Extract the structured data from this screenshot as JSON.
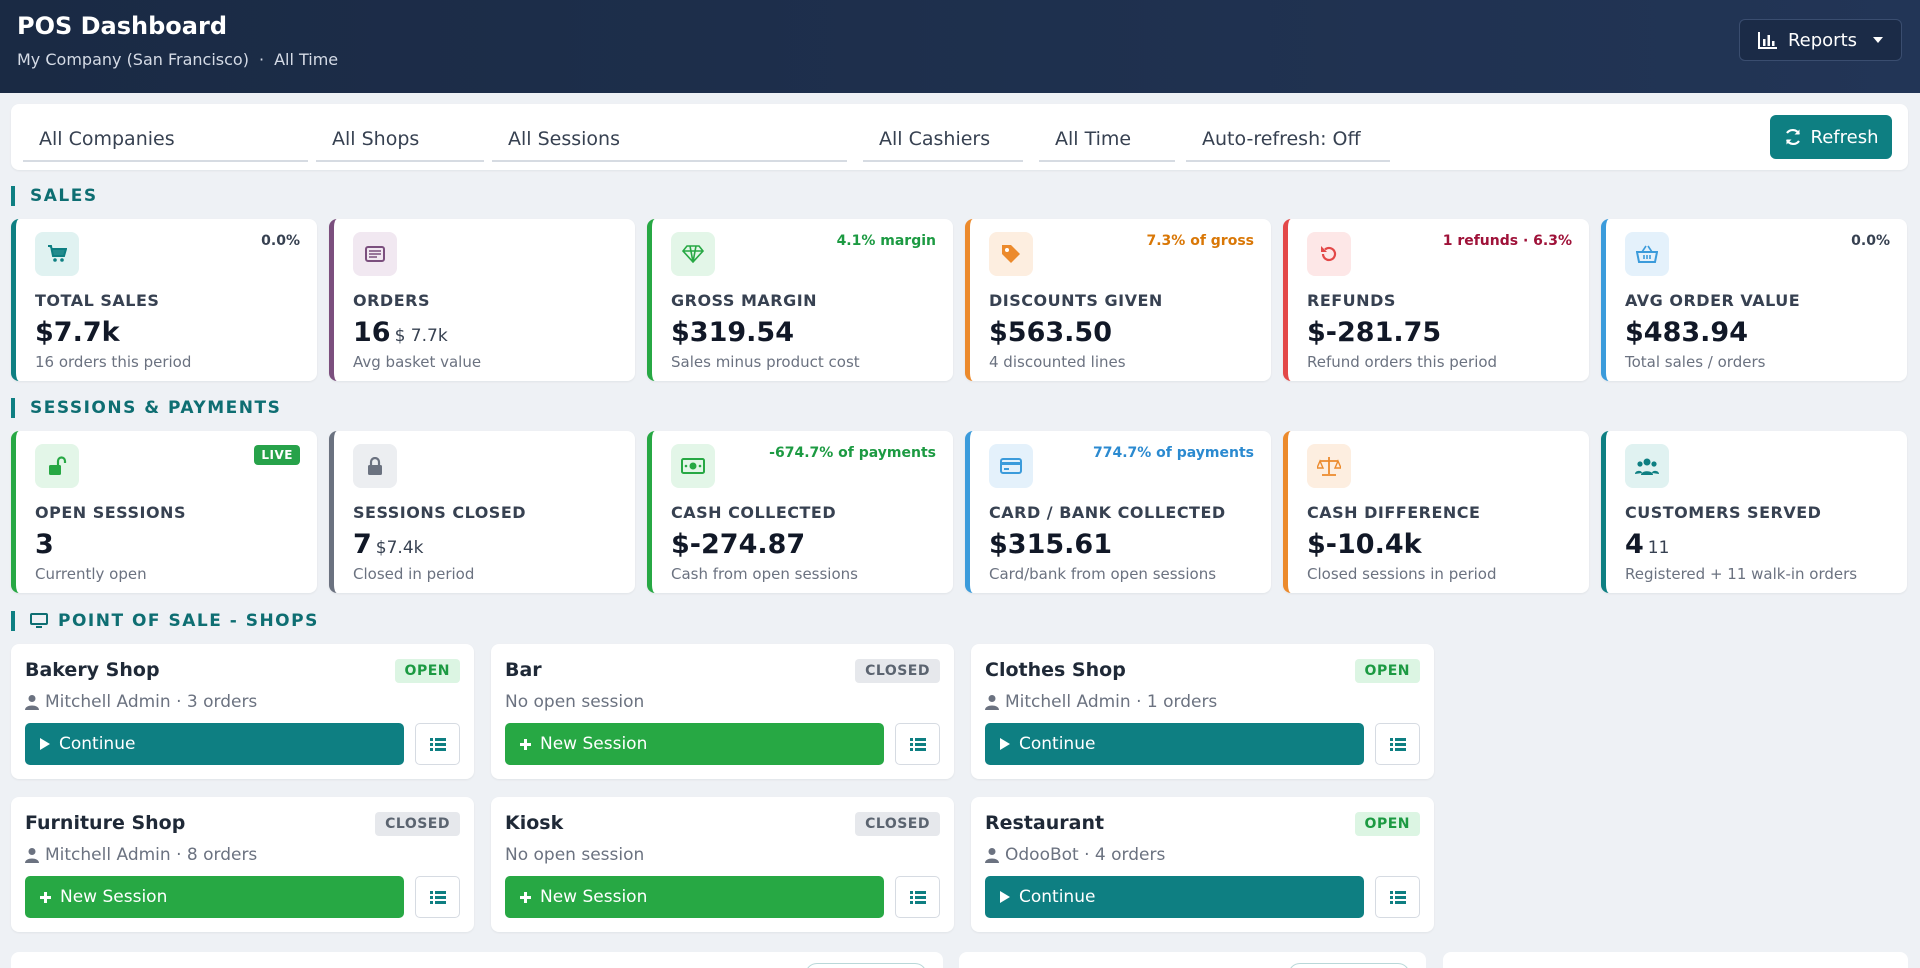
{
  "header": {
    "title": "POS Dashboard",
    "company": "My Company (San Francisco)",
    "separator": "·",
    "period": "All Time",
    "reports_label": "Reports"
  },
  "filters": {
    "companies": "All Companies",
    "shops": "All Shops",
    "sessions": "All Sessions",
    "cashiers": "All Cashiers",
    "time": "All Time",
    "autorefresh": "Auto-refresh: Off",
    "refresh_label": "Refresh"
  },
  "sales": {
    "title": "SALES",
    "cards": [
      {
        "label": "TOTAL SALES",
        "value": "$7.7k",
        "sub": "",
        "desc": "16 orders this period",
        "badge": "0.0%",
        "icon": "cart-icon",
        "accent": "#0e7f82",
        "badge_color": "#374151",
        "icon_bg": "#e0f2f1"
      },
      {
        "label": "ORDERS",
        "value": "16",
        "sub": "$ 7.7k",
        "desc": "Avg basket value",
        "badge": "",
        "icon": "receipt-icon",
        "accent": "#7b4f7e",
        "badge_color": "#374151",
        "icon_bg": "#f1e8f1"
      },
      {
        "label": "GROSS MARGIN",
        "value": "$319.54",
        "sub": "",
        "desc": "Sales minus product cost",
        "badge": "4.1% margin",
        "icon": "diamond-icon",
        "accent": "#27a844",
        "badge_color": "#1c9a42",
        "icon_bg": "#e3f6e8"
      },
      {
        "label": "DISCOUNTS GIVEN",
        "value": "$563.50",
        "sub": "",
        "desc": "4 discounted lines",
        "badge": "7.3% of gross",
        "icon": "tag-icon",
        "accent": "#ec8a2c",
        "badge_color": "#d97706",
        "icon_bg": "#fdeee0"
      },
      {
        "label": "REFUNDS",
        "value": "$-281.75",
        "sub": "",
        "desc": "Refund orders this period",
        "badge": "1 refunds · 6.3%",
        "icon": "undo-icon",
        "accent": "#e34848",
        "badge_color": "#9f1239",
        "icon_bg": "#fde7e7"
      },
      {
        "label": "AVG ORDER VALUE",
        "value": "$483.94",
        "sub": "",
        "desc": "Total sales / orders",
        "badge": "0.0%",
        "icon": "basket-icon",
        "accent": "#3b9bdb",
        "badge_color": "#374151",
        "icon_bg": "#e4f1fb"
      }
    ]
  },
  "sessions": {
    "title": "SESSIONS & PAYMENTS",
    "cards": [
      {
        "label": "OPEN SESSIONS",
        "value": "3",
        "sub": "",
        "desc": "Currently open",
        "badge": "",
        "live": "LIVE",
        "icon": "unlock-icon",
        "accent": "#27a844",
        "badge_color": "#374151",
        "icon_bg": "#e3f6e8"
      },
      {
        "label": "SESSIONS CLOSED",
        "value": "7",
        "sub": "$7.4k",
        "desc": "Closed in period",
        "badge": "",
        "icon": "lock-icon",
        "accent": "#6b7280",
        "badge_color": "#374151",
        "icon_bg": "#eceef1"
      },
      {
        "label": "CASH COLLECTED",
        "value": "$-274.87",
        "sub": "",
        "desc": "Cash from open sessions",
        "badge": "-674.7% of payments",
        "icon": "cash-icon",
        "accent": "#27a844",
        "badge_color": "#1c9a42",
        "icon_bg": "#e3f6e8"
      },
      {
        "label": "CARD / BANK COLLECTED",
        "value": "$315.61",
        "sub": "",
        "desc": "Card/bank from open sessions",
        "badge": "774.7% of payments",
        "icon": "credit-card-icon",
        "accent": "#3b9bdb",
        "badge_color": "#2b8ad0",
        "icon_bg": "#e4f1fb"
      },
      {
        "label": "CASH DIFFERENCE",
        "value": "$-10.4k",
        "sub": "",
        "desc": "Closed sessions in period",
        "badge": "",
        "icon": "scale-icon",
        "accent": "#ec8a2c",
        "badge_color": "#374151",
        "icon_bg": "#fdeee0"
      },
      {
        "label": "CUSTOMERS SERVED",
        "value": "4",
        "sub": "11",
        "desc": "Registered + 11 walk-in orders",
        "badge": "",
        "icon": "users-icon",
        "accent": "#0e7f82",
        "badge_color": "#374151",
        "icon_bg": "#e0f2f1"
      }
    ]
  },
  "shops": {
    "title": "POINT OF SALE - SHOPS",
    "items": [
      {
        "name": "Bakery Shop",
        "status": "OPEN",
        "info": "Mitchell Admin · 3 orders",
        "has_user": true,
        "action": "Continue"
      },
      {
        "name": "Bar",
        "status": "CLOSED",
        "info": "No open session",
        "has_user": false,
        "action": "New Session"
      },
      {
        "name": "Clothes Shop",
        "status": "OPEN",
        "info": "Mitchell Admin · 1 orders",
        "has_user": true,
        "action": "Continue"
      },
      {
        "name": "Furniture Shop",
        "status": "CLOSED",
        "info": "Mitchell Admin · 8 orders",
        "has_user": true,
        "action": "New Session"
      },
      {
        "name": "Kiosk",
        "status": "CLOSED",
        "info": "No open session",
        "has_user": false,
        "action": "New Session"
      },
      {
        "name": "Restaurant",
        "status": "OPEN",
        "info": "OdooBot · 4 orders",
        "has_user": true,
        "action": "Continue"
      }
    ]
  }
}
